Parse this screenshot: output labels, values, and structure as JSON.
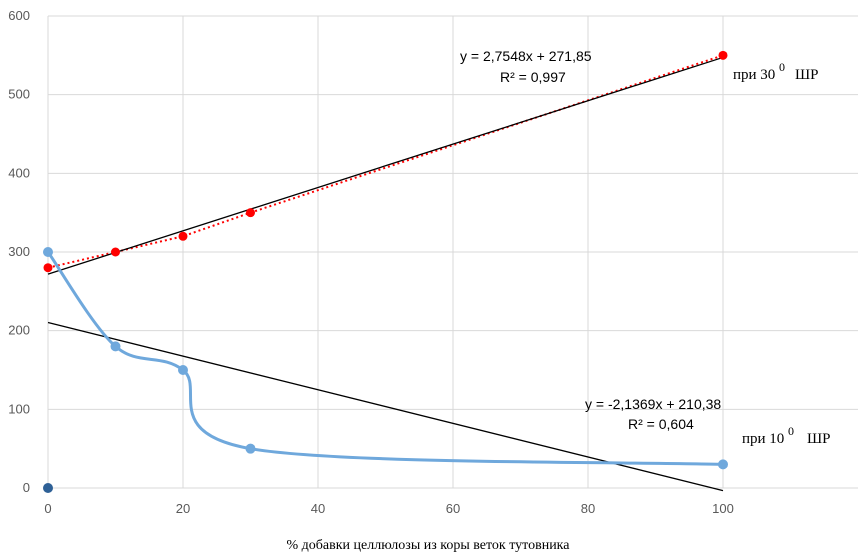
{
  "chart_data": {
    "type": "scatter",
    "xlabel": "% добавки целлюлозы из коры веток тутовника",
    "ylabel": "",
    "xlim": [
      0,
      120
    ],
    "ylim": [
      0,
      600
    ],
    "xticks": [
      "0",
      "20",
      "40",
      "60",
      "80",
      "100"
    ],
    "yticks": [
      "0",
      "100",
      "200",
      "300",
      "400",
      "500",
      "600"
    ],
    "grid": true,
    "series": [
      {
        "name": "при 30⁰ ШР",
        "color": "#ff0000",
        "x": [
          0,
          10,
          20,
          30,
          100
        ],
        "y": [
          280,
          300,
          320,
          350,
          550
        ],
        "trendline": {
          "slope": 2.7548,
          "intercept": 271.85,
          "equation": "y = 2,7548x + 271,85",
          "r2": "R² = 0,997"
        }
      },
      {
        "name": "при 10⁰ ШР",
        "color": "#6fa8dc",
        "x": [
          0,
          10,
          20,
          30,
          100
        ],
        "y": [
          300,
          180,
          150,
          50,
          30
        ],
        "trendline": {
          "slope": -2.1369,
          "intercept": 210.38,
          "equation": "y = -2,1369x + 210,38",
          "r2": "R² = 0,604"
        }
      }
    ],
    "extra_point": {
      "x": 0,
      "y": 0,
      "color": "#2e6096"
    }
  },
  "labels": {
    "red_series_main": "при 30",
    "red_series_sup": "0",
    "red_series_tail": "ШР",
    "blue_series_main": "при 10",
    "blue_series_sup": "0",
    "blue_series_tail": "ШР"
  }
}
